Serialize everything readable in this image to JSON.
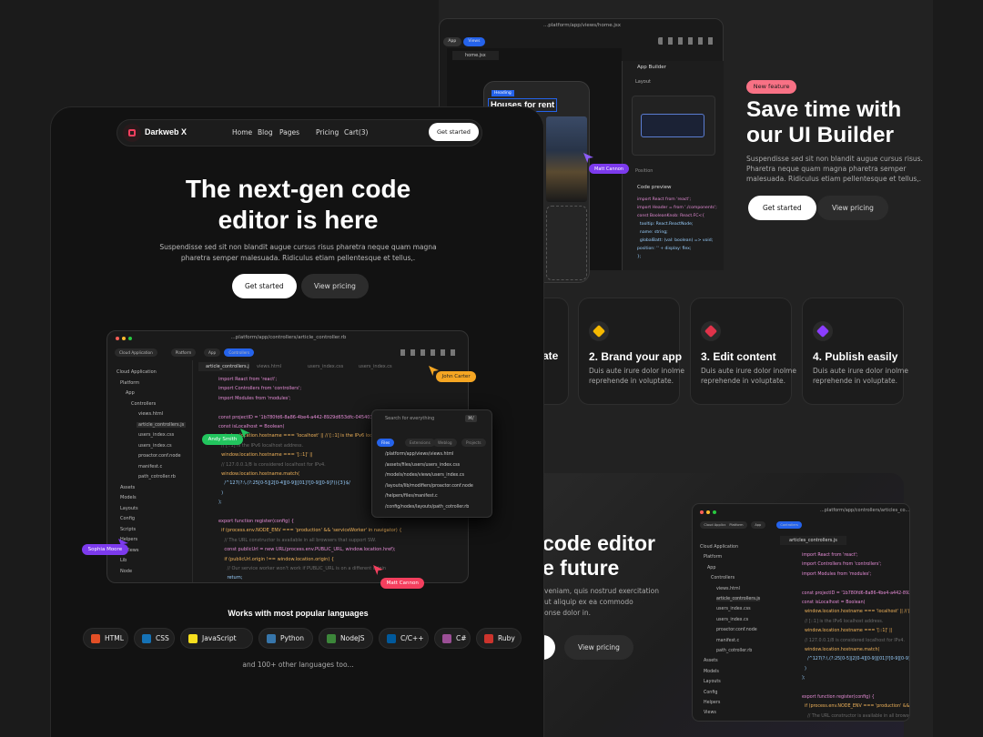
{
  "main": {
    "brand": "Darkweb X",
    "nav": [
      "Home",
      "Blog",
      "Pages",
      "Pricing",
      "Cart(3)"
    ],
    "nav_cta": "Get started",
    "title_lines": [
      "The next-gen code",
      "editor is here"
    ],
    "subtitle_lines": [
      "Suspendisse sed sit non blandit augue cursus risus pharetra neque quam magna",
      "pharetra semper malesuada. Ridiculus etiam pellentesque et tellus,."
    ],
    "buttons": [
      "Get started",
      "View pricing"
    ],
    "editor": {
      "path": "...platform/app/controllers/article_controller.rb",
      "crumbs": [
        "Cloud Application",
        "Platform",
        "App",
        "Controllers"
      ],
      "tabs": [
        "article_controllers.js",
        "views.html",
        "users_index.css",
        "users_index.cs"
      ],
      "tree": [
        "Cloud Application",
        "Platform",
        "App",
        "Controllers",
        "views.html",
        "article_controllers.js",
        "users_index.css",
        "users_index.cs",
        "proactor.conf.node",
        "manifest.c",
        "path_cotroller.rb",
        "Assets",
        "Models",
        "Layouts",
        "Config",
        "Scripts",
        "Helpers",
        "Views",
        "Lib",
        "Node"
      ],
      "code": [
        "import React from 'react';",
        "import Controllers from 'controllers';",
        "import Modules from 'modules';",
        "",
        "const projectID = '1b780fd6-8a86-4be4-a442-8929d653dfc-04540345';",
        "const isLocalhost = Boolean(",
        "  window.location.hostname === 'localhost' || // [::1] is the IPv6 localhost",
        "  // [::1] is the IPv6 localhost address.",
        "  window.location.hostname === '[::1]' ||",
        "  // 127.0.0.1/8 is considered localhost for IPv4.",
        "  window.location.hostname.match(",
        "    /^127(?:\\.(?:25[0-5]|2[0-4][0-9]|[01]?[0-9][0-9]?)){3}$/",
        "  )",
        ");",
        "",
        "export function register(config) {",
        "  if (process.env.NODE_ENV === 'production' && 'serviceWorker' in navigator) {",
        "    // The URL constructor is available in all browsers that support SW.",
        "    const publicUrl = new URL(process.env.PUBLIC_URL, window.location.href);",
        "    if (publicUrl.origin !== window.location.origin) {",
        "      // Our service worker won't work if PUBLIC_URL is on a different origin",
        "      return;",
        "    }"
      ]
    },
    "search": {
      "placeholder": "Search for everything",
      "shortcut": "⌘/",
      "filters": [
        "Files",
        "Extensions",
        "Weblog",
        "Projects"
      ],
      "results": [
        "/platform/app/views/views.html",
        "/assets/files/users/users_index.css",
        "/models/nodes/views/users_index.cs",
        "/layouts/lib/modifiers/proactor.conf.node",
        "/helpers/files/manifest.c",
        "/config/nodes/layouts/path_cotroller.rb"
      ]
    },
    "cursors": [
      "John Carter",
      "Andy Smith",
      "Sophia Moore",
      "Matt Cannon"
    ],
    "languages_title": "Works with most popular languages",
    "languages": [
      "HTML",
      "CSS",
      "JavaScript",
      "Python",
      "NodeJS",
      "C/C++",
      "C#",
      "Ruby"
    ],
    "languages_more": "and 100+ other languages too..."
  },
  "builder": {
    "path": "...platform/app/views/home.jsx",
    "tabs": [
      "App",
      "Views"
    ],
    "file": "home.jsx",
    "tag": "Heading",
    "heading": "Houses for rent",
    "panel_title": "App Builder",
    "layout": "Layout",
    "position": "Position",
    "code_title": "Code preview",
    "cursor": "Matt Cannon",
    "code": [
      "import React from 'react';",
      "import Header = from './components';",
      "const BooleanKnob: React.FC<{",
      "  tooltip: React.ReactNode;",
      "  name: string;",
      "  globalBatt: (val: boolean) => void;",
      "position: '' + display: flex;",
      "};"
    ]
  },
  "feature": {
    "badge": "New feature",
    "title_lines": [
      "Save time with",
      "our UI Builder"
    ],
    "text_lines": [
      "Suspendisse sed sit non blandit augue cursus risus.",
      "Pharetra neque quam magna pharetra semper",
      "malesuada. Ridiculus etiam pellentesque et tellus,."
    ],
    "buttons": [
      "Get started",
      "View pricing"
    ]
  },
  "steps": {
    "partial": "ate",
    "items": [
      {
        "title": "2. Brand your app",
        "text": [
          "Duis aute irure dolor inolme",
          "reprehende in voluptate."
        ]
      },
      {
        "title": "3. Edit content",
        "text": [
          "Duis aute irure dolor inolme",
          "reprehende in voluptate."
        ]
      },
      {
        "title": "4. Publish easily",
        "text": [
          "Duis aute irure dolor inolme",
          "reprehende in voluptate."
        ]
      }
    ]
  },
  "bottom": {
    "title_lines": [
      "code editor",
      "e future"
    ],
    "text_lines": [
      "veniam, quis nostrud exercitation",
      "ut aliquip ex ea commodo",
      "onse dolor in."
    ],
    "button": "View pricing",
    "editor": {
      "path": "...platform/app/controllers/articles_co...",
      "crumbs": [
        "Cloud Application",
        "Platform",
        "App",
        "Controllers"
      ],
      "tab": "articles_controllers.js"
    }
  }
}
